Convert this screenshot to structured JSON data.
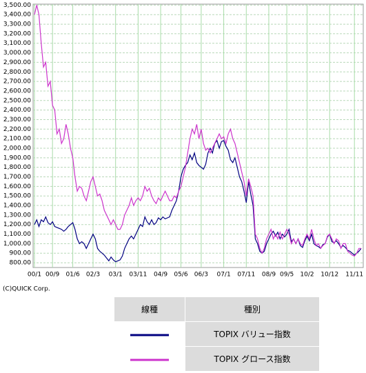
{
  "chart_data": {
    "type": "line",
    "categories": [
      "00/1",
      null,
      null,
      null,
      null,
      null,
      null,
      null,
      "00/9",
      null,
      null,
      null,
      null,
      null,
      null,
      null,
      null,
      "01/6",
      null,
      null,
      null,
      null,
      null,
      null,
      null,
      null,
      "02/3",
      null,
      null,
      null,
      null,
      null,
      null,
      null,
      null,
      null,
      "03/1",
      null,
      null,
      null,
      null,
      null,
      null,
      null,
      null,
      null,
      "03/11",
      null,
      null,
      null,
      null,
      null,
      null,
      null,
      null,
      null,
      "04/9",
      null,
      null,
      null,
      null,
      null,
      null,
      null,
      null,
      "05/6",
      null,
      null,
      null,
      null,
      null,
      null,
      null,
      null,
      "06/3",
      null,
      null,
      null,
      null,
      null,
      null,
      null,
      null,
      null,
      "07/1",
      null,
      null,
      null,
      null,
      null,
      null,
      null,
      null,
      null,
      "07/11",
      null,
      null,
      null,
      null,
      null,
      null,
      null,
      null,
      null,
      "08/9",
      null,
      null,
      null,
      null,
      null,
      null,
      null,
      "09/5",
      null,
      null,
      null,
      null,
      null,
      null,
      null,
      null,
      "10/2",
      null,
      null,
      null,
      null,
      null,
      null,
      null,
      null,
      null,
      "10/12",
      null,
      null,
      null,
      null,
      null,
      null,
      null,
      null,
      null,
      null,
      "11/11",
      null,
      null,
      null
    ],
    "series": [
      {
        "name": "TOPIX バリュー指数",
        "color": "#000080",
        "values": [
          1200,
          1250,
          1180,
          1250,
          1230,
          1280,
          1220,
          1200,
          1230,
          1180,
          1170,
          1160,
          1150,
          1130,
          1150,
          1180,
          1200,
          1220,
          1150,
          1050,
          1000,
          1020,
          1000,
          950,
          1000,
          1050,
          1100,
          1050,
          950,
          920,
          900,
          880,
          850,
          820,
          860,
          830,
          810,
          820,
          830,
          870,
          950,
          1000,
          1050,
          1080,
          1050,
          1100,
          1150,
          1200,
          1180,
          1280,
          1230,
          1200,
          1250,
          1200,
          1220,
          1270,
          1250,
          1280,
          1260,
          1270,
          1280,
          1350,
          1400,
          1450,
          1550,
          1700,
          1780,
          1820,
          1850,
          1930,
          1880,
          1950,
          1850,
          1820,
          1800,
          1780,
          1830,
          1950,
          2000,
          1950,
          2050,
          2080,
          2000,
          2070,
          2080,
          2020,
          1980,
          1880,
          1850,
          1900,
          1800,
          1700,
          1650,
          1550,
          1430,
          1650,
          1520,
          1400,
          1050,
          1000,
          920,
          900,
          920,
          1000,
          1050,
          1100,
          1130,
          1080,
          1120,
          1050,
          1100,
          1070,
          1100,
          1150,
          1020,
          1050,
          1000,
          1050,
          980,
          960,
          1030,
          1080,
          1030,
          1100,
          1000,
          980,
          970,
          950,
          990,
          1000,
          1070,
          1100,
          1020,
          1010,
          1030,
          1000,
          960,
          980,
          960,
          930,
          920,
          900,
          880,
          900,
          920,
          950
        ]
      },
      {
        "name": "TOPIX グロース指数",
        "color": "#cc33cc",
        "values": [
          3400,
          3500,
          3400,
          3100,
          2850,
          2900,
          2650,
          2700,
          2450,
          2400,
          2150,
          2200,
          2050,
          2100,
          2250,
          2150,
          2000,
          1900,
          1700,
          1550,
          1600,
          1580,
          1500,
          1450,
          1550,
          1650,
          1700,
          1600,
          1500,
          1520,
          1450,
          1350,
          1300,
          1250,
          1200,
          1250,
          1200,
          1150,
          1150,
          1200,
          1300,
          1350,
          1400,
          1480,
          1400,
          1450,
          1480,
          1450,
          1500,
          1600,
          1550,
          1580,
          1500,
          1450,
          1420,
          1480,
          1450,
          1500,
          1550,
          1500,
          1450,
          1450,
          1500,
          1480,
          1550,
          1600,
          1700,
          1800,
          1950,
          2100,
          2200,
          2150,
          2250,
          2100,
          2200,
          2050,
          1980,
          2000,
          1950,
          2000,
          2050,
          2100,
          2150,
          2100,
          2120,
          2050,
          2150,
          2200,
          2100,
          2050,
          1950,
          1850,
          1750,
          1650,
          1500,
          1680,
          1600,
          1500,
          1100,
          1050,
          950,
          900,
          950,
          1050,
          1100,
          1150,
          1050,
          1100,
          1050,
          1120,
          1050,
          1100,
          1150,
          1100,
          1000,
          1050,
          1000,
          1050,
          1000,
          980,
          1050,
          1100,
          1050,
          1150,
          1050,
          980,
          1000,
          950,
          980,
          1000,
          1080,
          1100,
          1050,
          1000,
          1050,
          1030,
          950,
          1000,
          1000,
          920,
          900,
          880,
          870,
          900,
          950,
          950
        ]
      }
    ],
    "ylim": [
      750,
      3510
    ],
    "yticks": [
      {
        "value": 800,
        "label": "800.00"
      },
      {
        "value": 900,
        "label": "900.00"
      },
      {
        "value": 1000,
        "label": "1,000.00"
      },
      {
        "value": 1100,
        "label": "1,100.00"
      },
      {
        "value": 1200,
        "label": "1,200.00"
      },
      {
        "value": 1300,
        "label": "1,300.00"
      },
      {
        "value": 1400,
        "label": "1,400.00"
      },
      {
        "value": 1500,
        "label": "1,500.00"
      },
      {
        "value": 1600,
        "label": "1,600.00"
      },
      {
        "value": 1700,
        "label": "1,700.00"
      },
      {
        "value": 1800,
        "label": "1,800.00"
      },
      {
        "value": 1900,
        "label": "1,900.00"
      },
      {
        "value": 2000,
        "label": "2,000.00"
      },
      {
        "value": 2100,
        "label": "2,100.00"
      },
      {
        "value": 2200,
        "label": "2,200.00"
      },
      {
        "value": 2300,
        "label": "2,300.00"
      },
      {
        "value": 2400,
        "label": "2,400.00"
      },
      {
        "value": 2500,
        "label": "2,500.00"
      },
      {
        "value": 2600,
        "label": "2,600.00"
      },
      {
        "value": 2700,
        "label": "2,700.00"
      },
      {
        "value": 2800,
        "label": "2,800.00"
      },
      {
        "value": 2900,
        "label": "2,900.00"
      },
      {
        "value": 3000,
        "label": "3,000.00"
      },
      {
        "value": 3100,
        "label": "3,100.00"
      },
      {
        "value": 3200,
        "label": "3,200.00"
      },
      {
        "value": 3300,
        "label": "3,300.00"
      },
      {
        "value": 3400,
        "label": "3,400.00"
      },
      {
        "value": 3500,
        "label": "3,500.00"
      }
    ],
    "grid": true,
    "credit": "(C)QUICK Corp.",
    "legend_header": [
      "線種",
      "種別"
    ]
  }
}
